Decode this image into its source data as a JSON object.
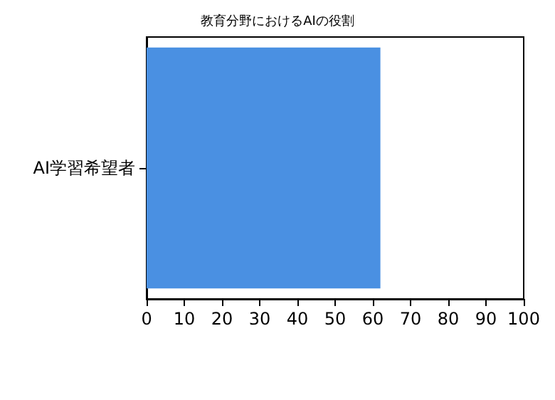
{
  "chart_data": {
    "type": "bar",
    "title": "教育分野におけるAIの役割",
    "orientation": "horizontal",
    "categories": [
      "AI学習希望者"
    ],
    "values": [
      62
    ],
    "color": "#4a90e2",
    "xlim": [
      0,
      100
    ],
    "xticks": [
      0,
      10,
      20,
      30,
      40,
      50,
      60,
      70,
      80,
      90,
      100
    ],
    "grid": false
  }
}
